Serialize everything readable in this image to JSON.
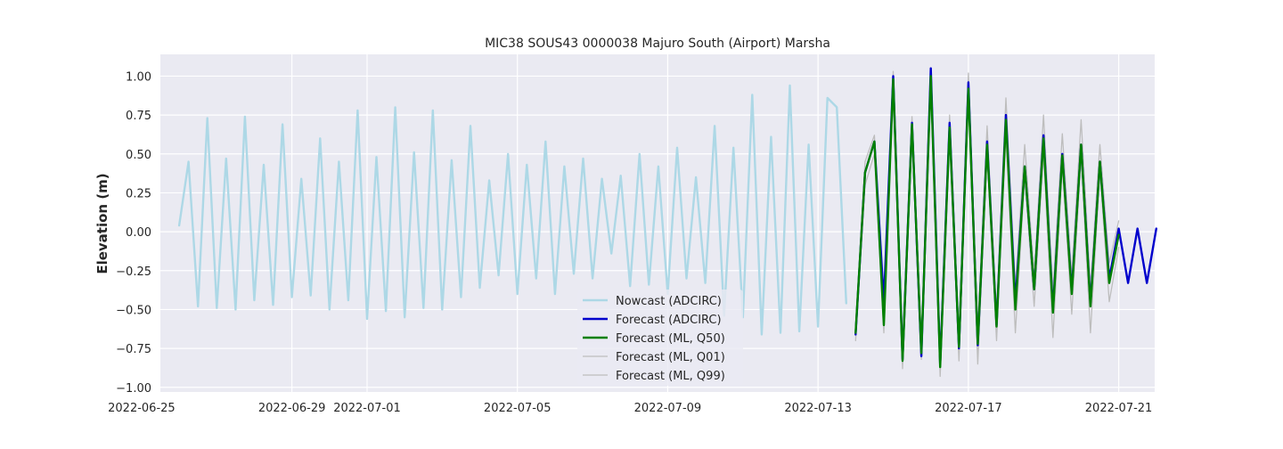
{
  "chart_data": {
    "type": "line",
    "title": "MIC38 SOUS43 0000038 Majuro South (Airport) Marsha",
    "xlabel": "",
    "ylabel": "Elevation (m)",
    "xlim": [
      "2022-06-25T12:00",
      "2022-07-21T23:00"
    ],
    "ylim": [
      -1.03,
      1.14
    ],
    "grid": true,
    "legend_position": "lower-center",
    "x_ticks": [
      "2022-06-25",
      "2022-06-29",
      "2022-07-01",
      "2022-07-05",
      "2022-07-09",
      "2022-07-13",
      "2022-07-17",
      "2022-07-21"
    ],
    "y_ticks": [
      {
        "value": 1.0,
        "label": "1.00"
      },
      {
        "value": 0.75,
        "label": "0.75"
      },
      {
        "value": 0.5,
        "label": "0.50"
      },
      {
        "value": 0.25,
        "label": "0.25"
      },
      {
        "value": 0.0,
        "label": "0.00"
      },
      {
        "value": -0.25,
        "label": "−0.25"
      },
      {
        "value": -0.5,
        "label": "−0.50"
      },
      {
        "value": -0.75,
        "label": "−0.75"
      },
      {
        "value": -1.0,
        "label": "−1.00"
      }
    ],
    "series": [
      {
        "name": "Nowcast (ADCIRC)",
        "color": "#add8e6",
        "width": 2.4,
        "x": [
          "2022-06-26T00:00",
          "2022-06-26T06:00",
          "2022-06-26T12:00",
          "2022-06-26T18:00",
          "2022-06-27T00:00",
          "2022-06-27T06:00",
          "2022-06-27T12:00",
          "2022-06-27T18:00",
          "2022-06-28T00:00",
          "2022-06-28T06:00",
          "2022-06-28T12:00",
          "2022-06-28T18:00",
          "2022-06-29T00:00",
          "2022-06-29T06:00",
          "2022-06-29T12:00",
          "2022-06-29T18:00",
          "2022-06-30T00:00",
          "2022-06-30T06:00",
          "2022-06-30T12:00",
          "2022-06-30T18:00",
          "2022-07-01T00:00",
          "2022-07-01T06:00",
          "2022-07-01T12:00",
          "2022-07-01T18:00",
          "2022-07-02T00:00",
          "2022-07-02T06:00",
          "2022-07-02T12:00",
          "2022-07-02T18:00",
          "2022-07-03T00:00",
          "2022-07-03T06:00",
          "2022-07-03T12:00",
          "2022-07-03T18:00",
          "2022-07-04T00:00",
          "2022-07-04T06:00",
          "2022-07-04T12:00",
          "2022-07-04T18:00",
          "2022-07-05T00:00",
          "2022-07-05T06:00",
          "2022-07-05T12:00",
          "2022-07-05T18:00",
          "2022-07-06T00:00",
          "2022-07-06T06:00",
          "2022-07-06T12:00",
          "2022-07-06T18:00",
          "2022-07-07T00:00",
          "2022-07-07T06:00",
          "2022-07-07T12:00",
          "2022-07-07T18:00",
          "2022-07-08T00:00",
          "2022-07-08T06:00",
          "2022-07-08T12:00",
          "2022-07-08T18:00",
          "2022-07-09T00:00",
          "2022-07-09T06:00",
          "2022-07-09T12:00",
          "2022-07-09T18:00",
          "2022-07-10T00:00",
          "2022-07-10T06:00",
          "2022-07-10T12:00",
          "2022-07-10T18:00",
          "2022-07-11T00:00",
          "2022-07-11T06:00",
          "2022-07-11T12:00",
          "2022-07-11T18:00",
          "2022-07-12T00:00",
          "2022-07-12T06:00",
          "2022-07-12T12:00",
          "2022-07-12T18:00",
          "2022-07-13T00:00",
          "2022-07-13T06:00",
          "2022-07-13T12:00",
          "2022-07-13T18:00"
        ],
        "y": [
          0.04,
          0.45,
          -0.48,
          0.73,
          -0.49,
          0.47,
          -0.5,
          0.74,
          -0.44,
          0.43,
          -0.47,
          0.69,
          -0.42,
          0.34,
          -0.41,
          0.6,
          -0.5,
          0.45,
          -0.44,
          0.78,
          -0.56,
          0.48,
          -0.51,
          0.8,
          -0.55,
          0.51,
          -0.49,
          0.78,
          -0.5,
          0.46,
          -0.42,
          0.68,
          -0.36,
          0.33,
          -0.28,
          0.5,
          -0.4,
          0.43,
          -0.3,
          0.58,
          -0.4,
          0.42,
          -0.27,
          0.47,
          -0.3,
          0.34,
          -0.14,
          0.36,
          -0.35,
          0.5,
          -0.34,
          0.42,
          -0.4,
          0.54,
          -0.3,
          0.35,
          -0.33,
          0.68,
          -0.54,
          0.54,
          -0.55,
          0.88,
          -0.66,
          0.61,
          -0.65,
          0.94,
          -0.64,
          0.56,
          -0.61,
          0.86,
          0.8,
          -0.46
        ]
      },
      {
        "name": "Forecast (ADCIRC)",
        "color": "#0000cc",
        "width": 2.4,
        "x": [
          "2022-07-14T00:00",
          "2022-07-14T06:00",
          "2022-07-14T12:00",
          "2022-07-14T18:00",
          "2022-07-15T00:00",
          "2022-07-15T06:00",
          "2022-07-15T12:00",
          "2022-07-15T18:00",
          "2022-07-16T00:00",
          "2022-07-16T06:00",
          "2022-07-16T12:00",
          "2022-07-16T18:00",
          "2022-07-17T00:00",
          "2022-07-17T06:00",
          "2022-07-17T12:00",
          "2022-07-17T18:00",
          "2022-07-18T00:00",
          "2022-07-18T06:00",
          "2022-07-18T12:00",
          "2022-07-18T18:00",
          "2022-07-19T00:00",
          "2022-07-19T06:00",
          "2022-07-19T12:00",
          "2022-07-19T18:00",
          "2022-07-20T00:00",
          "2022-07-20T06:00",
          "2022-07-20T12:00",
          "2022-07-20T18:00",
          "2022-07-21T00:00",
          "2022-07-21T06:00",
          "2022-07-21T12:00",
          "2022-07-21T18:00",
          "2022-07-22T00:00"
        ],
        "y": [
          -0.66,
          0.38,
          0.58,
          -0.45,
          1.0,
          -0.82,
          0.7,
          -0.8,
          1.05,
          -0.85,
          0.7,
          -0.75,
          0.96,
          -0.73,
          0.58,
          -0.6,
          0.75,
          -0.45,
          0.42,
          -0.37,
          0.62,
          -0.5,
          0.5,
          -0.38,
          0.56,
          -0.46,
          0.45,
          -0.3,
          0.02,
          -0.33,
          0.02,
          -0.33,
          0.02
        ]
      },
      {
        "name": "Forecast (ML, Q50)",
        "color": "#008000",
        "width": 2.4,
        "x": [
          "2022-07-14T00:00",
          "2022-07-14T06:00",
          "2022-07-14T12:00",
          "2022-07-14T18:00",
          "2022-07-15T00:00",
          "2022-07-15T06:00",
          "2022-07-15T12:00",
          "2022-07-15T18:00",
          "2022-07-16T00:00",
          "2022-07-16T06:00",
          "2022-07-16T12:00",
          "2022-07-16T18:00",
          "2022-07-17T00:00",
          "2022-07-17T06:00",
          "2022-07-17T12:00",
          "2022-07-17T18:00",
          "2022-07-18T00:00",
          "2022-07-18T06:00",
          "2022-07-18T12:00",
          "2022-07-18T18:00",
          "2022-07-19T00:00",
          "2022-07-19T06:00",
          "2022-07-19T12:00",
          "2022-07-19T18:00",
          "2022-07-20T00:00",
          "2022-07-20T06:00",
          "2022-07-20T12:00",
          "2022-07-20T18:00",
          "2022-07-21T00:00"
        ],
        "y": [
          -0.65,
          0.38,
          0.58,
          -0.6,
          0.98,
          -0.83,
          0.69,
          -0.78,
          1.0,
          -0.87,
          0.67,
          -0.74,
          0.92,
          -0.72,
          0.56,
          -0.61,
          0.72,
          -0.5,
          0.42,
          -0.37,
          0.6,
          -0.52,
          0.49,
          -0.4,
          0.56,
          -0.48,
          0.45,
          -0.33,
          -0.02
        ]
      },
      {
        "name": "Forecast (ML, Q01)",
        "color": "#bdbdbd",
        "width": 1.3,
        "x": [
          "2022-07-14T00:00",
          "2022-07-14T06:00",
          "2022-07-14T12:00",
          "2022-07-14T18:00",
          "2022-07-15T00:00",
          "2022-07-15T06:00",
          "2022-07-15T12:00",
          "2022-07-15T18:00",
          "2022-07-16T00:00",
          "2022-07-16T06:00",
          "2022-07-16T12:00",
          "2022-07-16T18:00",
          "2022-07-17T00:00",
          "2022-07-17T06:00",
          "2022-07-17T12:00",
          "2022-07-17T18:00",
          "2022-07-18T00:00",
          "2022-07-18T06:00",
          "2022-07-18T12:00",
          "2022-07-18T18:00",
          "2022-07-19T00:00",
          "2022-07-19T06:00",
          "2022-07-19T12:00",
          "2022-07-19T18:00",
          "2022-07-20T00:00",
          "2022-07-20T06:00",
          "2022-07-20T12:00",
          "2022-07-20T18:00",
          "2022-07-21T00:00"
        ],
        "y": [
          -0.7,
          0.3,
          0.5,
          -0.65,
          0.92,
          -0.88,
          0.62,
          -0.82,
          0.94,
          -0.93,
          0.6,
          -0.83,
          0.86,
          -0.85,
          0.5,
          -0.7,
          0.62,
          -0.65,
          0.35,
          -0.48,
          0.5,
          -0.68,
          0.42,
          -0.53,
          0.48,
          -0.65,
          0.38,
          -0.45,
          -0.1
        ]
      },
      {
        "name": "Forecast (ML, Q99)",
        "color": "#bdbdbd",
        "width": 1.3,
        "x": [
          "2022-07-14T00:00",
          "2022-07-14T06:00",
          "2022-07-14T12:00",
          "2022-07-14T18:00",
          "2022-07-15T00:00",
          "2022-07-15T06:00",
          "2022-07-15T12:00",
          "2022-07-15T18:00",
          "2022-07-16T00:00",
          "2022-07-16T06:00",
          "2022-07-16T12:00",
          "2022-07-16T18:00",
          "2022-07-17T00:00",
          "2022-07-17T06:00",
          "2022-07-17T12:00",
          "2022-07-17T18:00",
          "2022-07-18T00:00",
          "2022-07-18T06:00",
          "2022-07-18T12:00",
          "2022-07-18T18:00",
          "2022-07-19T00:00",
          "2022-07-19T06:00",
          "2022-07-19T12:00",
          "2022-07-19T18:00",
          "2022-07-20T00:00",
          "2022-07-20T06:00",
          "2022-07-20T12:00",
          "2022-07-20T18:00",
          "2022-07-21T00:00"
        ],
        "y": [
          -0.6,
          0.45,
          0.62,
          -0.48,
          1.03,
          -0.76,
          0.74,
          -0.7,
          1.04,
          -0.78,
          0.75,
          -0.68,
          1.02,
          -0.62,
          0.68,
          -0.52,
          0.86,
          -0.35,
          0.56,
          -0.28,
          0.75,
          -0.38,
          0.63,
          -0.28,
          0.72,
          -0.35,
          0.56,
          -0.2,
          0.07
        ]
      }
    ]
  }
}
